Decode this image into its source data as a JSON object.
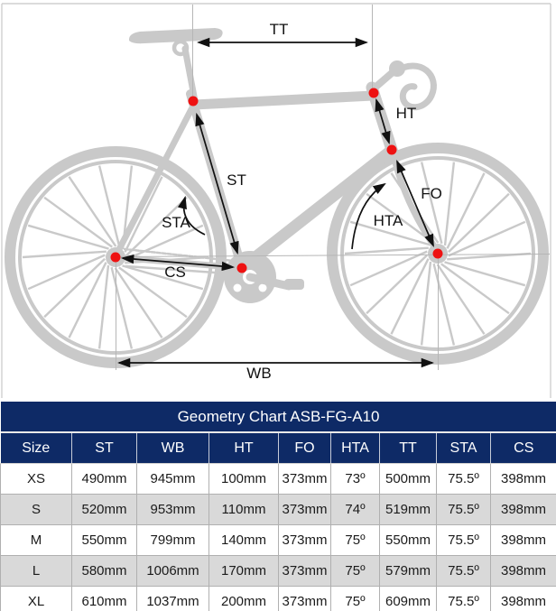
{
  "diagram": {
    "labels": {
      "tt": "TT",
      "st": "ST",
      "sta": "STA",
      "cs": "CS",
      "wb": "WB",
      "ht": "HT",
      "fo": "FO",
      "hta": "HTA"
    },
    "colors": {
      "silhouette": "#c9c9c9",
      "marker_dot": "#ee1111",
      "dimension": "#111111",
      "guide_line": "#b6b6b6"
    }
  },
  "table": {
    "title": "Geometry Chart ASB-FG-A10",
    "columns": [
      "Size",
      "ST",
      "WB",
      "HT",
      "FO",
      "HTA",
      "TT",
      "STA",
      "CS"
    ],
    "rows": [
      [
        "XS",
        "490mm",
        "945mm",
        "100mm",
        "373mm",
        "73º",
        "500mm",
        "75.5º",
        "398mm"
      ],
      [
        "S",
        "520mm",
        "953mm",
        "110mm",
        "373mm",
        "74º",
        "519mm",
        "75.5º",
        "398mm"
      ],
      [
        "M",
        "550mm",
        "799mm",
        "140mm",
        "373mm",
        "75º",
        "550mm",
        "75.5º",
        "398mm"
      ],
      [
        "L",
        "580mm",
        "1006mm",
        "170mm",
        "373mm",
        "75º",
        "579mm",
        "75.5º",
        "398mm"
      ],
      [
        "XL",
        "610mm",
        "1037mm",
        "200mm",
        "373mm",
        "75º",
        "609mm",
        "75.5º",
        "398mm"
      ]
    ],
    "colors": {
      "header_bg": "#0e2a66",
      "header_text": "#ffffff",
      "alt_row_bg": "#d9d9d9",
      "cell_border": "#b0b0b0"
    }
  }
}
